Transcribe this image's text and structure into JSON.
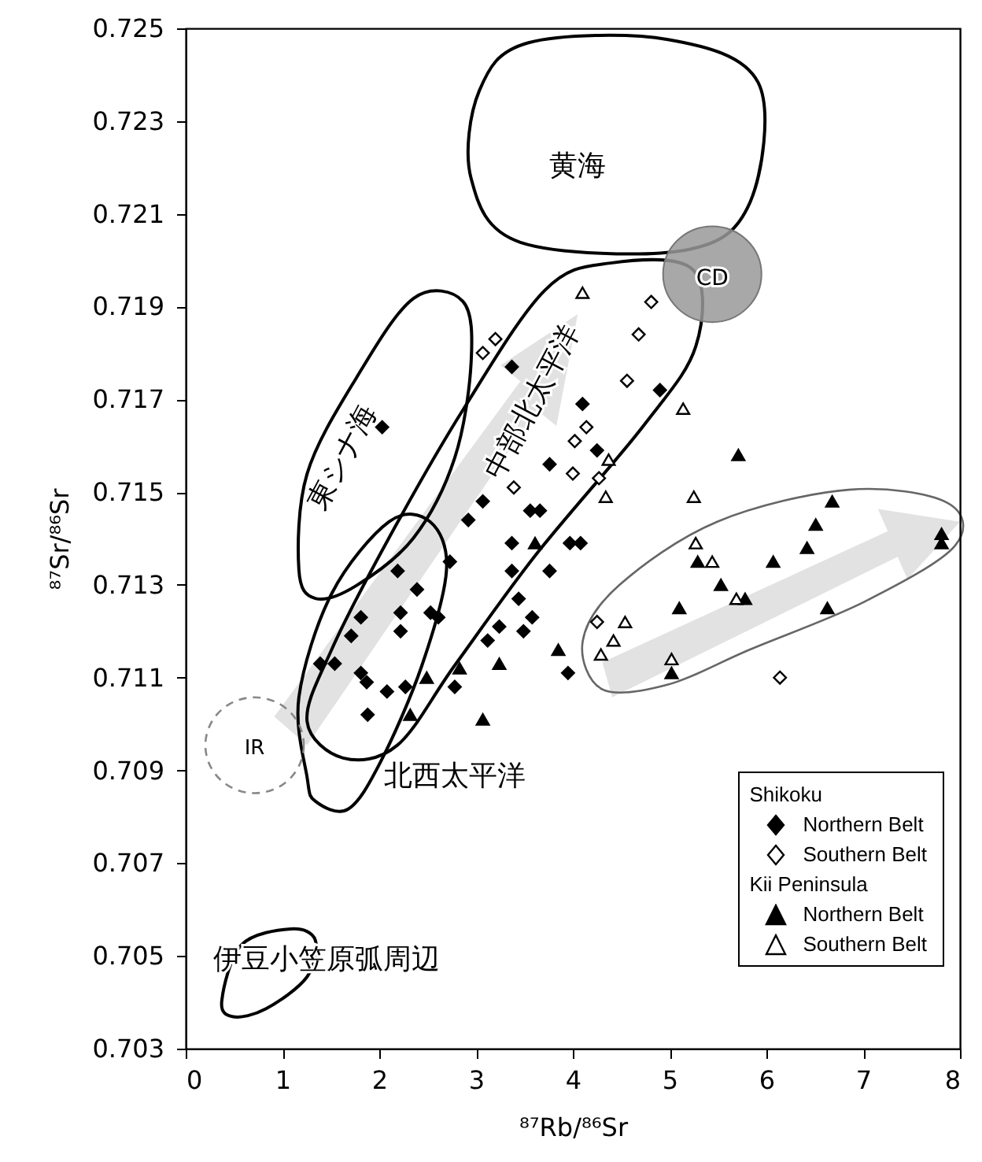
{
  "chart_data": {
    "type": "scatter",
    "xlabel": "⁸⁷Rb/⁸⁶Sr",
    "ylabel": "⁸⁷Sr/⁸⁶Sr",
    "xlim": [
      0,
      8
    ],
    "xticks": [
      0,
      1,
      2,
      3,
      4,
      5,
      6,
      7,
      8
    ],
    "ylim": [
      0.703,
      0.725
    ],
    "yticks": [
      0.703,
      0.705,
      0.707,
      0.709,
      0.711,
      0.713,
      0.715,
      0.717,
      0.719,
      0.721,
      0.723,
      0.725
    ],
    "grid": false,
    "legend": "bottom right",
    "series": [
      {
        "name": "Northern Belt",
        "color": "#000000",
        "marker": "diamond",
        "x": [
          2.03,
          3.37,
          4.9,
          4.1,
          4.25,
          3.76,
          3.07,
          3.56,
          3.66,
          2.92,
          3.37,
          3.97,
          4.08,
          2.73,
          2.19,
          3.37,
          3.76,
          2.39,
          3.44,
          2.22,
          2.53,
          2.61,
          3.58,
          1.81,
          2.22,
          3.24,
          3.49,
          1.71,
          3.12,
          1.39,
          1.54,
          1.81,
          1.87,
          2.27,
          2.08,
          2.78,
          3.95,
          1.88
        ],
        "values": [
          0.7164,
          0.7177,
          0.7172,
          0.7169,
          0.7159,
          0.7156,
          0.7148,
          0.7146,
          0.7146,
          0.7144,
          0.7139,
          0.7139,
          0.7139,
          0.7135,
          0.7133,
          0.7133,
          0.7133,
          0.7129,
          0.7127,
          0.7124,
          0.7124,
          0.7123,
          0.7123,
          0.7123,
          0.712,
          0.7121,
          0.712,
          0.7119,
          0.7118,
          0.7113,
          0.7113,
          0.7111,
          0.7109,
          0.7108,
          0.7107,
          0.7108,
          0.7111,
          0.7102
        ]
      },
      {
        "name": "Southern Belt",
        "color": "#ffffff",
        "marker": "diamond",
        "x": [
          3.07,
          3.2,
          4.81,
          4.68,
          4.56,
          4.14,
          4.02,
          4.0,
          4.27,
          3.39,
          4.25,
          6.14
        ],
        "values": [
          0.718,
          0.7183,
          0.7191,
          0.7184,
          0.7174,
          0.7164,
          0.7161,
          0.7154,
          0.7153,
          0.7151,
          0.7122,
          0.711
        ]
      },
      {
        "name": "Northern Belt",
        "color": "#000000",
        "marker": "triangle",
        "x": [
          3.61,
          3.24,
          3.85,
          2.49,
          2.83,
          2.32,
          3.07,
          5.71,
          6.68,
          6.51,
          6.42,
          6.07,
          5.29,
          5.53,
          5.78,
          5.1,
          6.63,
          7.81,
          7.81,
          5.02
        ],
        "values": [
          0.7139,
          0.7113,
          0.7116,
          0.711,
          0.7112,
          0.7102,
          0.7101,
          0.7158,
          0.7148,
          0.7143,
          0.7138,
          0.7135,
          0.7135,
          0.713,
          0.7127,
          0.7125,
          0.7125,
          0.7141,
          0.7139,
          0.7111
        ]
      },
      {
        "name": "Southern Belt",
        "color": "#ffffff",
        "marker": "triangle",
        "x": [
          4.1,
          5.14,
          4.37,
          4.34,
          5.25,
          5.27,
          5.44,
          5.69,
          4.54,
          4.42,
          4.29,
          5.02
        ],
        "values": [
          0.7193,
          0.7168,
          0.7157,
          0.7149,
          0.7149,
          0.7139,
          0.7135,
          0.7127,
          0.7122,
          0.7118,
          0.7115,
          0.7114
        ]
      }
    ],
    "annotations": [
      "黄海",
      "東シナ海",
      "中部北太平洋",
      "北西太平洋",
      "伊豆小笠原弧周辺",
      "IR",
      "CD",
      "Shikoku",
      "Kii Peninsula"
    ]
  }
}
